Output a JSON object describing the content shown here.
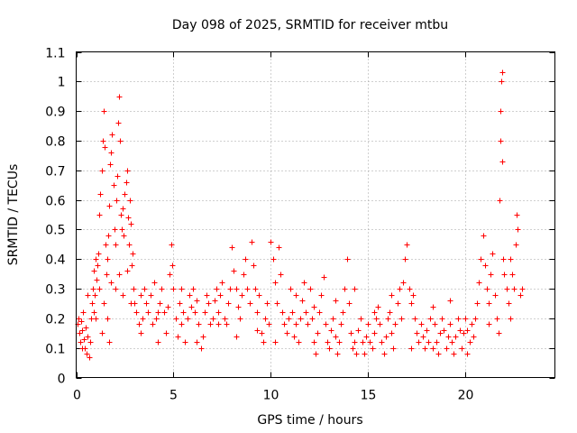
{
  "chart_data": {
    "type": "scatter",
    "title": "Day 098 of 2025, SRMTID for receiver mtbu",
    "xlabel": "GPS time / hours",
    "ylabel": "SRMTID / TECUs",
    "xlim": [
      0,
      24.6
    ],
    "ylim": [
      0,
      1.1
    ],
    "x_ticks": [
      0,
      5,
      10,
      15,
      20
    ],
    "x_tick_labels": [
      "0",
      "5",
      "10",
      "15",
      "20"
    ],
    "y_ticks": [
      0,
      0.1,
      0.2,
      0.3,
      0.4,
      0.5,
      0.6,
      0.7,
      0.8,
      0.9,
      1.0,
      1.1
    ],
    "y_tick_labels": [
      "0",
      "0.1",
      "0.2",
      "0.3",
      "0.4",
      "0.5",
      "0.6",
      "0.7",
      "0.8",
      "0.9",
      "1",
      "1.1"
    ],
    "grid": true,
    "marker": "+",
    "series": [
      {
        "name": "SRMTID",
        "color": "#ff0000",
        "points": [
          [
            0.05,
            0.18
          ],
          [
            0.1,
            0.2
          ],
          [
            0.15,
            0.15
          ],
          [
            0.2,
            0.12
          ],
          [
            0.25,
            0.19
          ],
          [
            0.3,
            0.16
          ],
          [
            0.35,
            0.22
          ],
          [
            0.4,
            0.13
          ],
          [
            0.45,
            0.1
          ],
          [
            0.5,
            0.17
          ],
          [
            0.55,
            0.08
          ],
          [
            0.6,
            0.14
          ],
          [
            0.65,
            0.07
          ],
          [
            0.7,
            0.12
          ],
          [
            0.75,
            0.2
          ],
          [
            0.8,
            0.25
          ],
          [
            0.85,
            0.3
          ],
          [
            0.9,
            0.36
          ],
          [
            0.95,
            0.28
          ],
          [
            1.0,
            0.4
          ],
          [
            1.05,
            0.33
          ],
          [
            1.1,
            0.38
          ],
          [
            1.15,
            0.42
          ],
          [
            1.2,
            0.55
          ],
          [
            1.25,
            0.62
          ],
          [
            1.3,
            0.7
          ],
          [
            1.35,
            0.8
          ],
          [
            1.4,
            0.9
          ],
          [
            1.45,
            0.78
          ],
          [
            1.5,
            0.45
          ],
          [
            1.55,
            0.35
          ],
          [
            1.6,
            0.4
          ],
          [
            1.65,
            0.48
          ],
          [
            1.7,
            0.58
          ],
          [
            1.75,
            0.72
          ],
          [
            1.8,
            0.76
          ],
          [
            1.85,
            0.82
          ],
          [
            1.9,
            0.65
          ],
          [
            1.95,
            0.5
          ],
          [
            2.0,
            0.45
          ],
          [
            2.05,
            0.6
          ],
          [
            2.1,
            0.68
          ],
          [
            2.15,
            0.86
          ],
          [
            2.2,
            0.95
          ],
          [
            2.25,
            0.8
          ],
          [
            2.3,
            0.55
          ],
          [
            2.35,
            0.5
          ],
          [
            2.4,
            0.57
          ],
          [
            2.45,
            0.48
          ],
          [
            2.5,
            0.62
          ],
          [
            2.55,
            0.66
          ],
          [
            2.6,
            0.7
          ],
          [
            2.65,
            0.54
          ],
          [
            2.7,
            0.45
          ],
          [
            2.75,
            0.6
          ],
          [
            2.8,
            0.52
          ],
          [
            2.85,
            0.38
          ],
          [
            2.9,
            0.42
          ],
          [
            2.95,
            0.3
          ],
          [
            3.0,
            0.25
          ],
          [
            1.0,
            0.2
          ],
          [
            1.2,
            0.3
          ],
          [
            1.4,
            0.25
          ],
          [
            1.6,
            0.2
          ],
          [
            1.8,
            0.32
          ],
          [
            2.0,
            0.3
          ],
          [
            2.2,
            0.35
          ],
          [
            2.4,
            0.28
          ],
          [
            2.6,
            0.36
          ],
          [
            2.8,
            0.25
          ],
          [
            1.3,
            0.15
          ],
          [
            1.7,
            0.12
          ],
          [
            0.9,
            0.22
          ],
          [
            0.6,
            0.28
          ],
          [
            0.3,
            0.1
          ],
          [
            3.1,
            0.22
          ],
          [
            3.2,
            0.18
          ],
          [
            3.3,
            0.15
          ],
          [
            3.4,
            0.2
          ],
          [
            3.5,
            0.3
          ],
          [
            3.6,
            0.25
          ],
          [
            3.7,
            0.22
          ],
          [
            3.8,
            0.28
          ],
          [
            3.9,
            0.18
          ],
          [
            4.0,
            0.32
          ],
          [
            4.1,
            0.2
          ],
          [
            4.2,
            0.12
          ],
          [
            4.3,
            0.25
          ],
          [
            4.4,
            0.3
          ],
          [
            4.5,
            0.22
          ],
          [
            4.6,
            0.15
          ],
          [
            4.7,
            0.24
          ],
          [
            4.8,
            0.35
          ],
          [
            4.9,
            0.45
          ],
          [
            4.95,
            0.38
          ],
          [
            5.0,
            0.3
          ],
          [
            5.1,
            0.2
          ],
          [
            5.2,
            0.14
          ],
          [
            5.3,
            0.25
          ],
          [
            5.4,
            0.18
          ],
          [
            5.5,
            0.22
          ],
          [
            5.6,
            0.12
          ],
          [
            5.7,
            0.2
          ],
          [
            5.8,
            0.28
          ],
          [
            5.9,
            0.24
          ],
          [
            6.0,
            0.3
          ],
          [
            6.1,
            0.22
          ],
          [
            6.2,
            0.12
          ],
          [
            6.3,
            0.18
          ],
          [
            6.4,
            0.1
          ],
          [
            6.5,
            0.14
          ],
          [
            6.6,
            0.22
          ],
          [
            6.7,
            0.28
          ],
          [
            6.8,
            0.25
          ],
          [
            6.9,
            0.18
          ],
          [
            7.0,
            0.2
          ],
          [
            7.1,
            0.26
          ],
          [
            7.2,
            0.3
          ],
          [
            7.3,
            0.22
          ],
          [
            7.4,
            0.28
          ],
          [
            7.5,
            0.32
          ],
          [
            7.6,
            0.2
          ],
          [
            7.7,
            0.18
          ],
          [
            7.8,
            0.25
          ],
          [
            7.9,
            0.3
          ],
          [
            8.0,
            0.44
          ],
          [
            8.1,
            0.36
          ],
          [
            8.2,
            0.3
          ],
          [
            8.3,
            0.24
          ],
          [
            8.4,
            0.2
          ],
          [
            8.5,
            0.28
          ],
          [
            8.6,
            0.35
          ],
          [
            8.7,
            0.4
          ],
          [
            8.8,
            0.3
          ],
          [
            8.9,
            0.25
          ],
          [
            9.0,
            0.46
          ],
          [
            9.1,
            0.38
          ],
          [
            9.2,
            0.3
          ],
          [
            9.3,
            0.22
          ],
          [
            9.4,
            0.28
          ],
          [
            9.5,
            0.15
          ],
          [
            9.6,
            0.12
          ],
          [
            9.7,
            0.2
          ],
          [
            9.8,
            0.25
          ],
          [
            9.9,
            0.18
          ],
          [
            10.0,
            0.46
          ],
          [
            10.1,
            0.4
          ],
          [
            10.2,
            0.32
          ],
          [
            10.3,
            0.25
          ],
          [
            10.4,
            0.44
          ],
          [
            10.5,
            0.35
          ],
          [
            10.6,
            0.22
          ],
          [
            10.7,
            0.18
          ],
          [
            10.8,
            0.15
          ],
          [
            10.9,
            0.2
          ],
          [
            11.0,
            0.3
          ],
          [
            11.1,
            0.22
          ],
          [
            11.2,
            0.14
          ],
          [
            11.3,
            0.18
          ],
          [
            11.4,
            0.12
          ],
          [
            11.5,
            0.2
          ],
          [
            11.6,
            0.26
          ],
          [
            11.7,
            0.32
          ],
          [
            11.8,
            0.22
          ],
          [
            11.9,
            0.18
          ],
          [
            12.0,
            0.3
          ],
          [
            12.1,
            0.2
          ],
          [
            12.2,
            0.12
          ],
          [
            12.3,
            0.08
          ],
          [
            12.4,
            0.15
          ],
          [
            12.5,
            0.22
          ],
          [
            12.6,
            0.28
          ],
          [
            12.7,
            0.34
          ],
          [
            12.8,
            0.18
          ],
          [
            12.9,
            0.12
          ],
          [
            13.0,
            0.1
          ],
          [
            13.1,
            0.16
          ],
          [
            13.2,
            0.2
          ],
          [
            13.3,
            0.14
          ],
          [
            13.4,
            0.08
          ],
          [
            13.5,
            0.12
          ],
          [
            13.6,
            0.18
          ],
          [
            13.7,
            0.22
          ],
          [
            13.8,
            0.3
          ],
          [
            13.9,
            0.4
          ],
          [
            14.0,
            0.25
          ],
          [
            14.1,
            0.15
          ],
          [
            14.2,
            0.1
          ],
          [
            14.3,
            0.12
          ],
          [
            14.4,
            0.08
          ],
          [
            14.5,
            0.16
          ],
          [
            14.6,
            0.2
          ],
          [
            14.7,
            0.12
          ],
          [
            14.8,
            0.08
          ],
          [
            14.9,
            0.14
          ],
          [
            15.0,
            0.18
          ],
          [
            15.1,
            0.12
          ],
          [
            15.2,
            0.1
          ],
          [
            15.3,
            0.15
          ],
          [
            15.4,
            0.2
          ],
          [
            15.5,
            0.24
          ],
          [
            15.6,
            0.18
          ],
          [
            15.7,
            0.12
          ],
          [
            15.8,
            0.08
          ],
          [
            15.9,
            0.14
          ],
          [
            16.0,
            0.2
          ],
          [
            16.1,
            0.22
          ],
          [
            16.2,
            0.15
          ],
          [
            16.3,
            0.1
          ],
          [
            16.4,
            0.18
          ],
          [
            16.5,
            0.25
          ],
          [
            16.6,
            0.3
          ],
          [
            16.7,
            0.2
          ],
          [
            16.8,
            0.32
          ],
          [
            16.9,
            0.4
          ],
          [
            17.0,
            0.45
          ],
          [
            17.1,
            0.3
          ],
          [
            17.2,
            0.25
          ],
          [
            17.3,
            0.28
          ],
          [
            17.4,
            0.2
          ],
          [
            17.5,
            0.15
          ],
          [
            17.6,
            0.12
          ],
          [
            17.7,
            0.18
          ],
          [
            17.8,
            0.14
          ],
          [
            17.9,
            0.1
          ],
          [
            18.0,
            0.16
          ],
          [
            18.1,
            0.12
          ],
          [
            18.2,
            0.2
          ],
          [
            18.3,
            0.24
          ],
          [
            18.4,
            0.18
          ],
          [
            18.5,
            0.12
          ],
          [
            18.6,
            0.08
          ],
          [
            18.7,
            0.15
          ],
          [
            18.8,
            0.2
          ],
          [
            18.9,
            0.16
          ],
          [
            19.0,
            0.1
          ],
          [
            19.1,
            0.14
          ],
          [
            19.2,
            0.18
          ],
          [
            19.3,
            0.12
          ],
          [
            19.4,
            0.08
          ],
          [
            19.5,
            0.14
          ],
          [
            19.6,
            0.2
          ],
          [
            19.7,
            0.16
          ],
          [
            19.8,
            0.1
          ],
          [
            19.9,
            0.15
          ],
          [
            20.0,
            0.2
          ],
          [
            20.1,
            0.16
          ],
          [
            20.2,
            0.12
          ],
          [
            20.3,
            0.18
          ],
          [
            20.4,
            0.14
          ],
          [
            20.5,
            0.2
          ],
          [
            20.6,
            0.25
          ],
          [
            20.7,
            0.32
          ],
          [
            20.8,
            0.4
          ],
          [
            20.9,
            0.48
          ],
          [
            21.0,
            0.38
          ],
          [
            21.1,
            0.3
          ],
          [
            21.2,
            0.25
          ],
          [
            21.3,
            0.35
          ],
          [
            21.4,
            0.42
          ],
          [
            21.5,
            0.28
          ],
          [
            21.6,
            0.2
          ],
          [
            21.7,
            0.15
          ],
          [
            21.75,
            0.6
          ],
          [
            21.8,
            0.8
          ],
          [
            21.82,
            0.9
          ],
          [
            21.85,
            1.0
          ],
          [
            21.88,
            1.03
          ],
          [
            21.9,
            0.73
          ],
          [
            21.95,
            0.4
          ],
          [
            22.0,
            0.35
          ],
          [
            22.1,
            0.3
          ],
          [
            22.2,
            0.25
          ],
          [
            22.3,
            0.4
          ],
          [
            22.4,
            0.35
          ],
          [
            22.5,
            0.3
          ],
          [
            22.6,
            0.45
          ],
          [
            22.65,
            0.55
          ],
          [
            22.7,
            0.5
          ],
          [
            22.8,
            0.28
          ],
          [
            22.9,
            0.3
          ],
          [
            3.3,
            0.28
          ],
          [
            4.2,
            0.22
          ],
          [
            5.4,
            0.3
          ],
          [
            6.2,
            0.26
          ],
          [
            7.3,
            0.18
          ],
          [
            8.2,
            0.14
          ],
          [
            9.3,
            0.16
          ],
          [
            10.2,
            0.12
          ],
          [
            11.3,
            0.28
          ],
          [
            12.2,
            0.24
          ],
          [
            13.3,
            0.26
          ],
          [
            14.3,
            0.3
          ],
          [
            15.3,
            0.22
          ],
          [
            16.2,
            0.28
          ],
          [
            17.2,
            0.1
          ],
          [
            18.3,
            0.1
          ],
          [
            19.2,
            0.26
          ],
          [
            20.1,
            0.08
          ],
          [
            21.2,
            0.18
          ],
          [
            22.3,
            0.2
          ]
        ]
      }
    ]
  }
}
